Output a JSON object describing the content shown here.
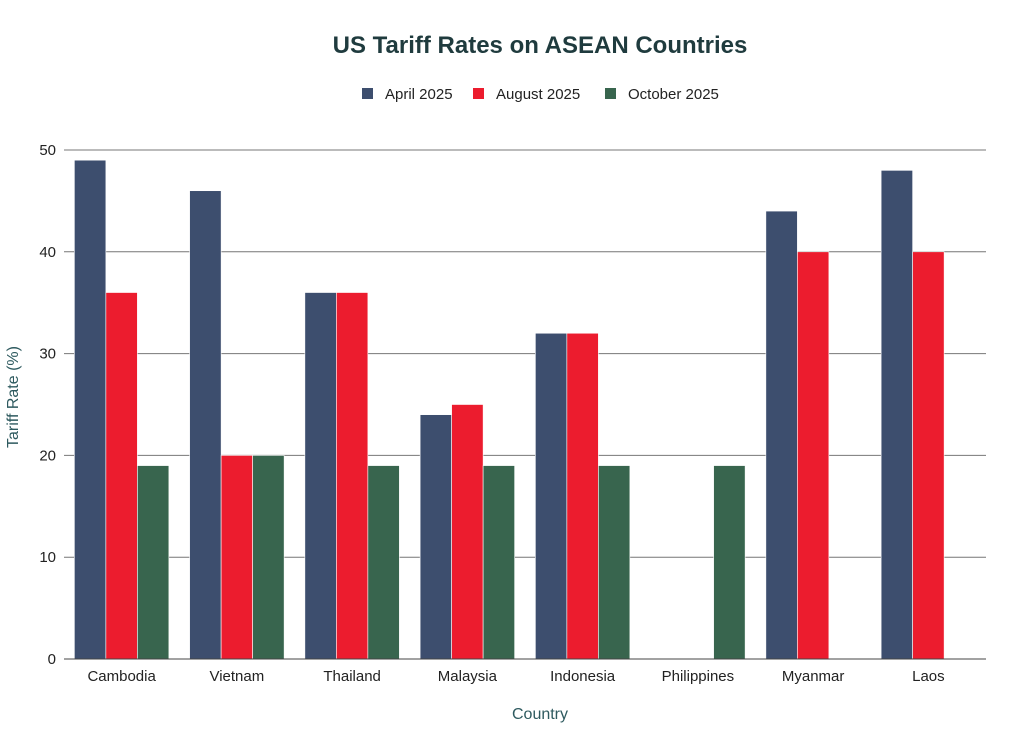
{
  "chart_data": {
    "type": "bar",
    "title": "US Tariff Rates on ASEAN Countries",
    "xlabel": "Country",
    "ylabel": "Tariff Rate (%)",
    "ylim": [
      0,
      50
    ],
    "yticks": [
      0,
      10,
      20,
      30,
      40,
      50
    ],
    "grid": true,
    "legend_position": "top-center",
    "categories": [
      "Cambodia",
      "Vietnam",
      "Thailand",
      "Malaysia",
      "Indonesia",
      "Philippines",
      "Myanmar",
      "Laos"
    ],
    "series": [
      {
        "name": "April 2025",
        "color": "#3d4e6e",
        "values": [
          49,
          46,
          36,
          24,
          32,
          null,
          44,
          48
        ]
      },
      {
        "name": "August 2025",
        "color": "#ec1c2e",
        "values": [
          36,
          20,
          36,
          25,
          32,
          null,
          40,
          40
        ]
      },
      {
        "name": "October 2025",
        "color": "#38654e",
        "values": [
          19,
          20,
          19,
          19,
          19,
          19,
          null,
          null
        ]
      }
    ]
  }
}
